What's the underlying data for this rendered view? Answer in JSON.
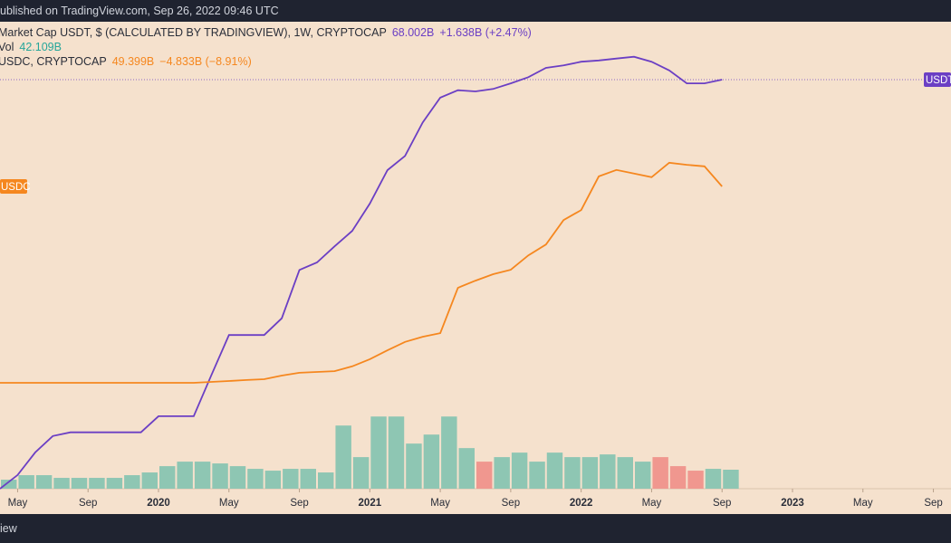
{
  "header": "ublished on TradingView.com, Sep 26, 2022 09:46 UTC",
  "footer": "iew",
  "chart_data": {
    "type": "line",
    "x": [
      "2019-04",
      "2019-05",
      "2019-06",
      "2019-07",
      "2019-08",
      "2019-09",
      "2019-10",
      "2019-11",
      "2019-12",
      "2020-01",
      "2020-02",
      "2020-03",
      "2020-04",
      "2020-05",
      "2020-06",
      "2020-07",
      "2020-08",
      "2020-09",
      "2020-10",
      "2020-11",
      "2020-12",
      "2021-01",
      "2021-02",
      "2021-03",
      "2021-04",
      "2021-05",
      "2021-06",
      "2021-07",
      "2021-08",
      "2021-09",
      "2021-10",
      "2021-11",
      "2021-12",
      "2022-01",
      "2022-02",
      "2022-03",
      "2022-04",
      "2022-05",
      "2022-06",
      "2022-07",
      "2022-08",
      "2022-09"
    ],
    "xlim": [
      "2019-04",
      "2023-10"
    ],
    "xticks": [
      {
        "value": "2019-05",
        "label": "May"
      },
      {
        "value": "2019-09",
        "label": "Sep"
      },
      {
        "value": "2020-01",
        "label": "2020"
      },
      {
        "value": "2020-05",
        "label": "May"
      },
      {
        "value": "2020-09",
        "label": "Sep"
      },
      {
        "value": "2021-01",
        "label": "2021"
      },
      {
        "value": "2021-05",
        "label": "May"
      },
      {
        "value": "2021-09",
        "label": "Sep"
      },
      {
        "value": "2022-01",
        "label": "2022"
      },
      {
        "value": "2022-05",
        "label": "May"
      },
      {
        "value": "2022-09",
        "label": "Sep"
      },
      {
        "value": "2023-01",
        "label": "2023"
      },
      {
        "value": "2023-05",
        "label": "May"
      },
      {
        "value": "2023-09",
        "label": "Sep"
      }
    ],
    "ylim": [
      2,
      77.35
    ],
    "y2lim": [
      -26.02,
      90.49
    ],
    "vlim": [
      0,
      1035
    ],
    "series": [
      {
        "name": "Market Cap USDT, $ (CALCULATED BY TRADINGVIEW), 1W, CRYPTOCAP",
        "tag": "USDT",
        "color": "#6b3fc4",
        "last_value_label": "68.002B",
        "change_label": "+1.638B (+2.47%)",
        "values": [
          2.0,
          4.2,
          7.85,
          10.5,
          11.1,
          11.1,
          11.1,
          11.1,
          11.1,
          13.7,
          13.7,
          13.7,
          20.3,
          26.8,
          26.8,
          26.8,
          29.5,
          37.3,
          38.5,
          41.1,
          43.6,
          48.0,
          53.4,
          55.7,
          61.1,
          65.1,
          66.3,
          66.1,
          66.5,
          67.4,
          68.4,
          69.9,
          70.3,
          70.9,
          71.1,
          71.4,
          71.7,
          70.9,
          69.5,
          67.4,
          67.4,
          68.002
        ]
      },
      {
        "name": "Vol",
        "type": "bar",
        "axis": "vol",
        "up_color": "#8ec6b3",
        "down_color": "#f0978f",
        "last_value_label": "42.109B",
        "values": [
          20,
          30,
          30,
          24,
          24,
          24,
          24,
          30,
          36,
          50,
          60,
          60,
          56,
          50,
          44,
          40,
          44,
          44,
          36,
          140,
          70,
          160,
          160,
          100,
          120,
          160,
          90,
          60,
          70,
          80,
          60,
          80,
          70,
          70,
          76,
          70,
          60,
          70,
          50,
          40,
          44,
          42.109
        ]
      },
      {
        "name": "USDC, CRYPTOCAP",
        "tag": "USDC",
        "color": "#f5871f",
        "axis": "y2",
        "last_value_label": "49.399B",
        "change_label": "−4.833B (−8.91%)",
        "values": [
          0.4,
          0.4,
          0.4,
          0.4,
          0.4,
          0.4,
          0.4,
          0.4,
          0.4,
          0.4,
          0.4,
          0.4,
          0.63,
          0.85,
          1.1,
          1.3,
          2.2,
          2.9,
          3.1,
          3.3,
          4.5,
          6.3,
          8.5,
          10.6,
          11.9,
          12.8,
          24.1,
          25.9,
          27.5,
          28.6,
          32.2,
          34.9,
          41.0,
          43.5,
          51.9,
          53.5,
          52.6,
          51.7,
          55.3,
          54.8,
          54.4,
          49.399
        ]
      }
    ]
  }
}
